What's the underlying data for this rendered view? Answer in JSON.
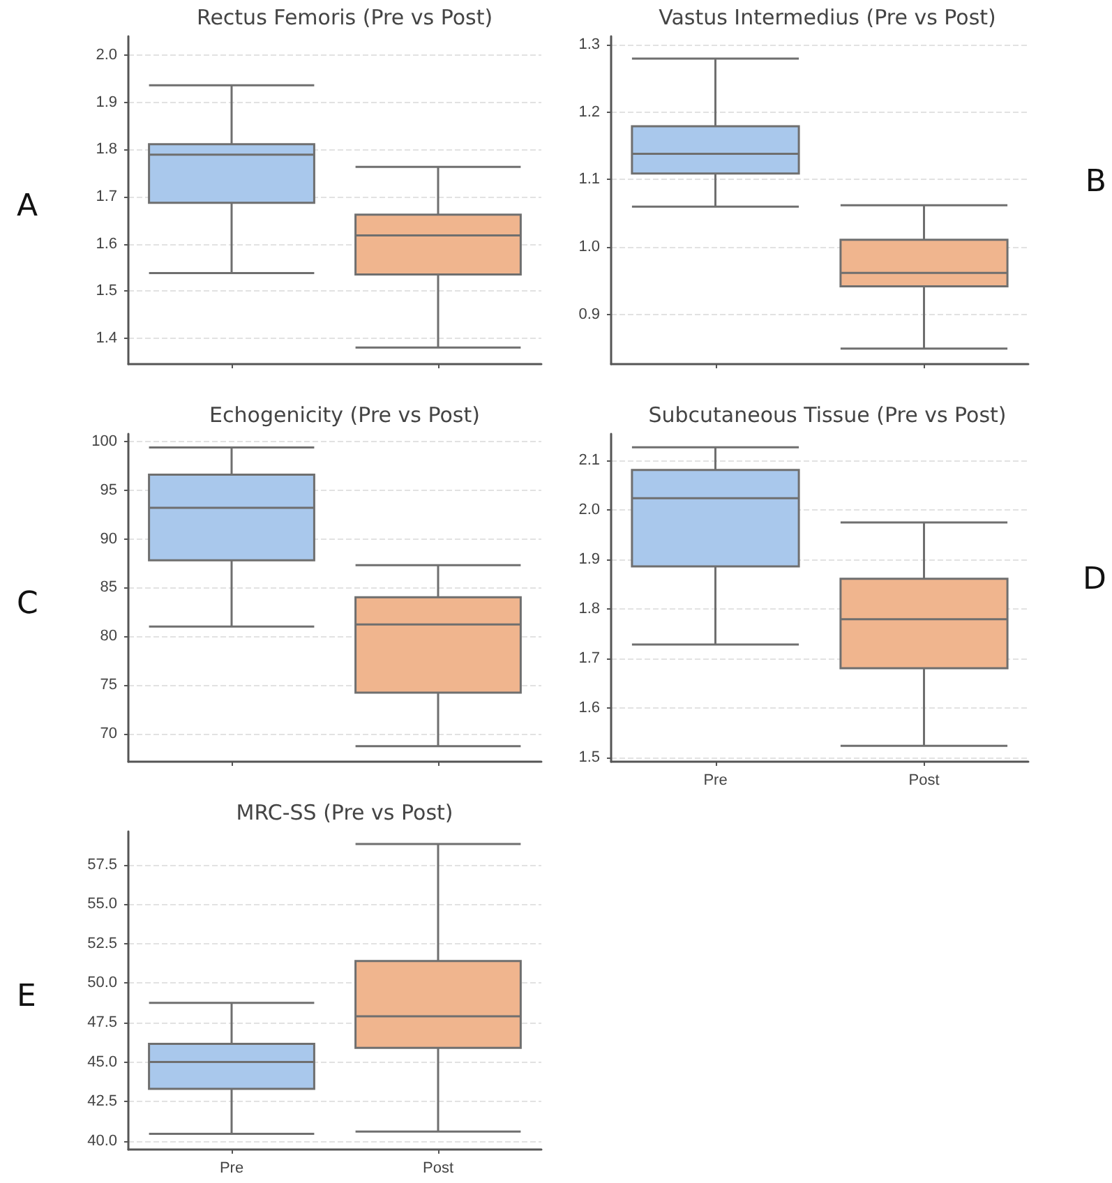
{
  "chart_data": [
    {
      "type": "box",
      "title": "Rectus Femoris (Pre vs Post)",
      "annotations": [
        "A"
      ],
      "categories": [
        null,
        null
      ],
      "colors": [
        "#a9c8ec",
        "#f0b58e"
      ],
      "grid": "y",
      "tick_labels": "y",
      "ylim": [
        1.345,
        2.04
      ],
      "yticks": [
        1.4,
        1.5,
        1.6,
        1.7,
        1.8,
        1.9,
        {
          "value": 2,
          "label": "2.0"
        }
      ],
      "boxes": [
        {
          "low": 1.538,
          "q1": 1.687,
          "median": 1.789,
          "q3": 1.811,
          "high": 1.936
        },
        {
          "low": 1.38,
          "q1": 1.535,
          "median": 1.618,
          "q3": 1.662,
          "high": 1.763
        }
      ]
    },
    {
      "type": "box",
      "title": "Vastus Intermedius (Pre vs Post)",
      "annotations": [
        "B"
      ],
      "categories": [
        null,
        null
      ],
      "colors": [
        "#a9c8ec",
        "#f0b58e"
      ],
      "grid": "y",
      "tick_labels": "y",
      "ylim": [
        0.827,
        1.312
      ],
      "yticks": [
        0.9,
        {
          "value": 1,
          "label": "1.0"
        },
        1.1,
        1.2,
        1.3
      ],
      "boxes": [
        {
          "low": 1.06,
          "q1": 1.109,
          "median": 1.138,
          "q3": 1.179,
          "high": 1.279
        },
        {
          "low": 0.85,
          "q1": 0.942,
          "median": 0.962,
          "q3": 1.011,
          "high": 1.062
        }
      ]
    },
    {
      "type": "box",
      "title": "Echogenicity (Pre vs Post)",
      "annotations": [
        "C"
      ],
      "categories": [
        null,
        null
      ],
      "colors": [
        "#a9c8ec",
        "#f0b58e"
      ],
      "grid": "y",
      "tick_labels": "y",
      "ylim": [
        67.1,
        100.8
      ],
      "yticks": [
        70,
        75,
        80,
        85,
        90,
        95,
        100
      ],
      "boxes": [
        {
          "low": 81.0,
          "q1": 87.8,
          "median": 93.2,
          "q3": 96.6,
          "high": 99.4
        },
        {
          "low": 68.7,
          "q1": 74.2,
          "median": 81.2,
          "q3": 84.0,
          "high": 87.3
        }
      ]
    },
    {
      "type": "box",
      "title": "Subcutaneous Tissue (Pre vs Post)",
      "annotations": [
        "D"
      ],
      "categories": [
        "Pre",
        "Post"
      ],
      "colors": [
        "#a9c8ec",
        "#f0b58e"
      ],
      "grid": "y",
      "ylim": [
        1.491,
        2.154
      ],
      "yticks": [
        1.5,
        1.6,
        1.7,
        1.8,
        1.9,
        {
          "value": 2,
          "label": "2.0"
        },
        2.1
      ],
      "boxes": [
        {
          "low": 1.728,
          "q1": 1.886,
          "median": 2.024,
          "q3": 2.081,
          "high": 2.127
        },
        {
          "low": 1.523,
          "q1": 1.68,
          "median": 1.779,
          "q3": 1.861,
          "high": 1.975
        }
      ]
    },
    {
      "type": "box",
      "title": "MRC-SS (Pre vs Post)",
      "annotations": [
        "E"
      ],
      "categories": [
        "Pre",
        "Post"
      ],
      "colors": [
        "#a9c8ec",
        "#f0b58e"
      ],
      "grid": "y",
      "ylim": [
        39.46,
        59.6
      ],
      "yticks": [
        {
          "value": 40,
          "label": "40.0"
        },
        42.5,
        {
          "value": 45,
          "label": "45.0"
        },
        47.5,
        {
          "value": 50,
          "label": "50.0"
        },
        52.5,
        {
          "value": 55,
          "label": "55.0"
        },
        57.5
      ],
      "boxes": [
        {
          "low": 40.45,
          "q1": 43.3,
          "median": 45.0,
          "q3": 46.15,
          "high": 48.75
        },
        {
          "low": 40.6,
          "q1": 45.9,
          "median": 47.9,
          "q3": 51.4,
          "high": 58.8
        }
      ]
    }
  ]
}
